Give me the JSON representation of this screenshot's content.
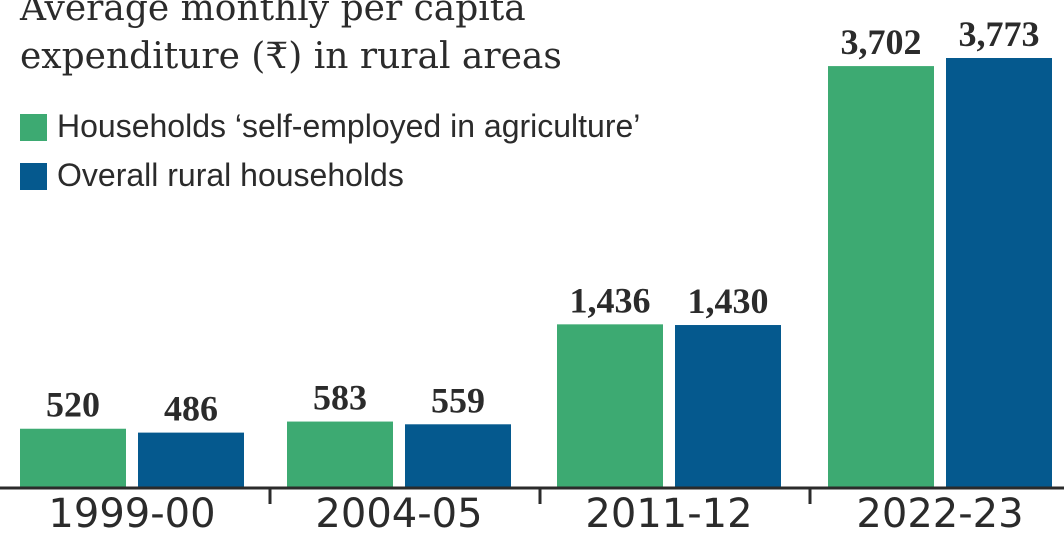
{
  "chart_data": {
    "type": "bar",
    "title_lines": [
      "Average monthly per capita",
      "expenditure (₹) in rural areas"
    ],
    "categories": [
      "1999-00",
      "2004-05",
      "2011-12",
      "2022-23"
    ],
    "series": [
      {
        "name": "Households ‘self-employed in agriculture’",
        "values": [
          520,
          583,
          1436,
          3702
        ],
        "labels": [
          "520",
          "583",
          "1,436",
          "3,702"
        ],
        "color": "#3daa72"
      },
      {
        "name": "Overall rural households",
        "values": [
          486,
          559,
          1430,
          3773
        ],
        "labels": [
          "486",
          "559",
          "1,430",
          "3,773"
        ],
        "color": "#05598e"
      }
    ],
    "ylim": [
      0,
      3773
    ],
    "grid": false,
    "legend_position": "top-left"
  }
}
